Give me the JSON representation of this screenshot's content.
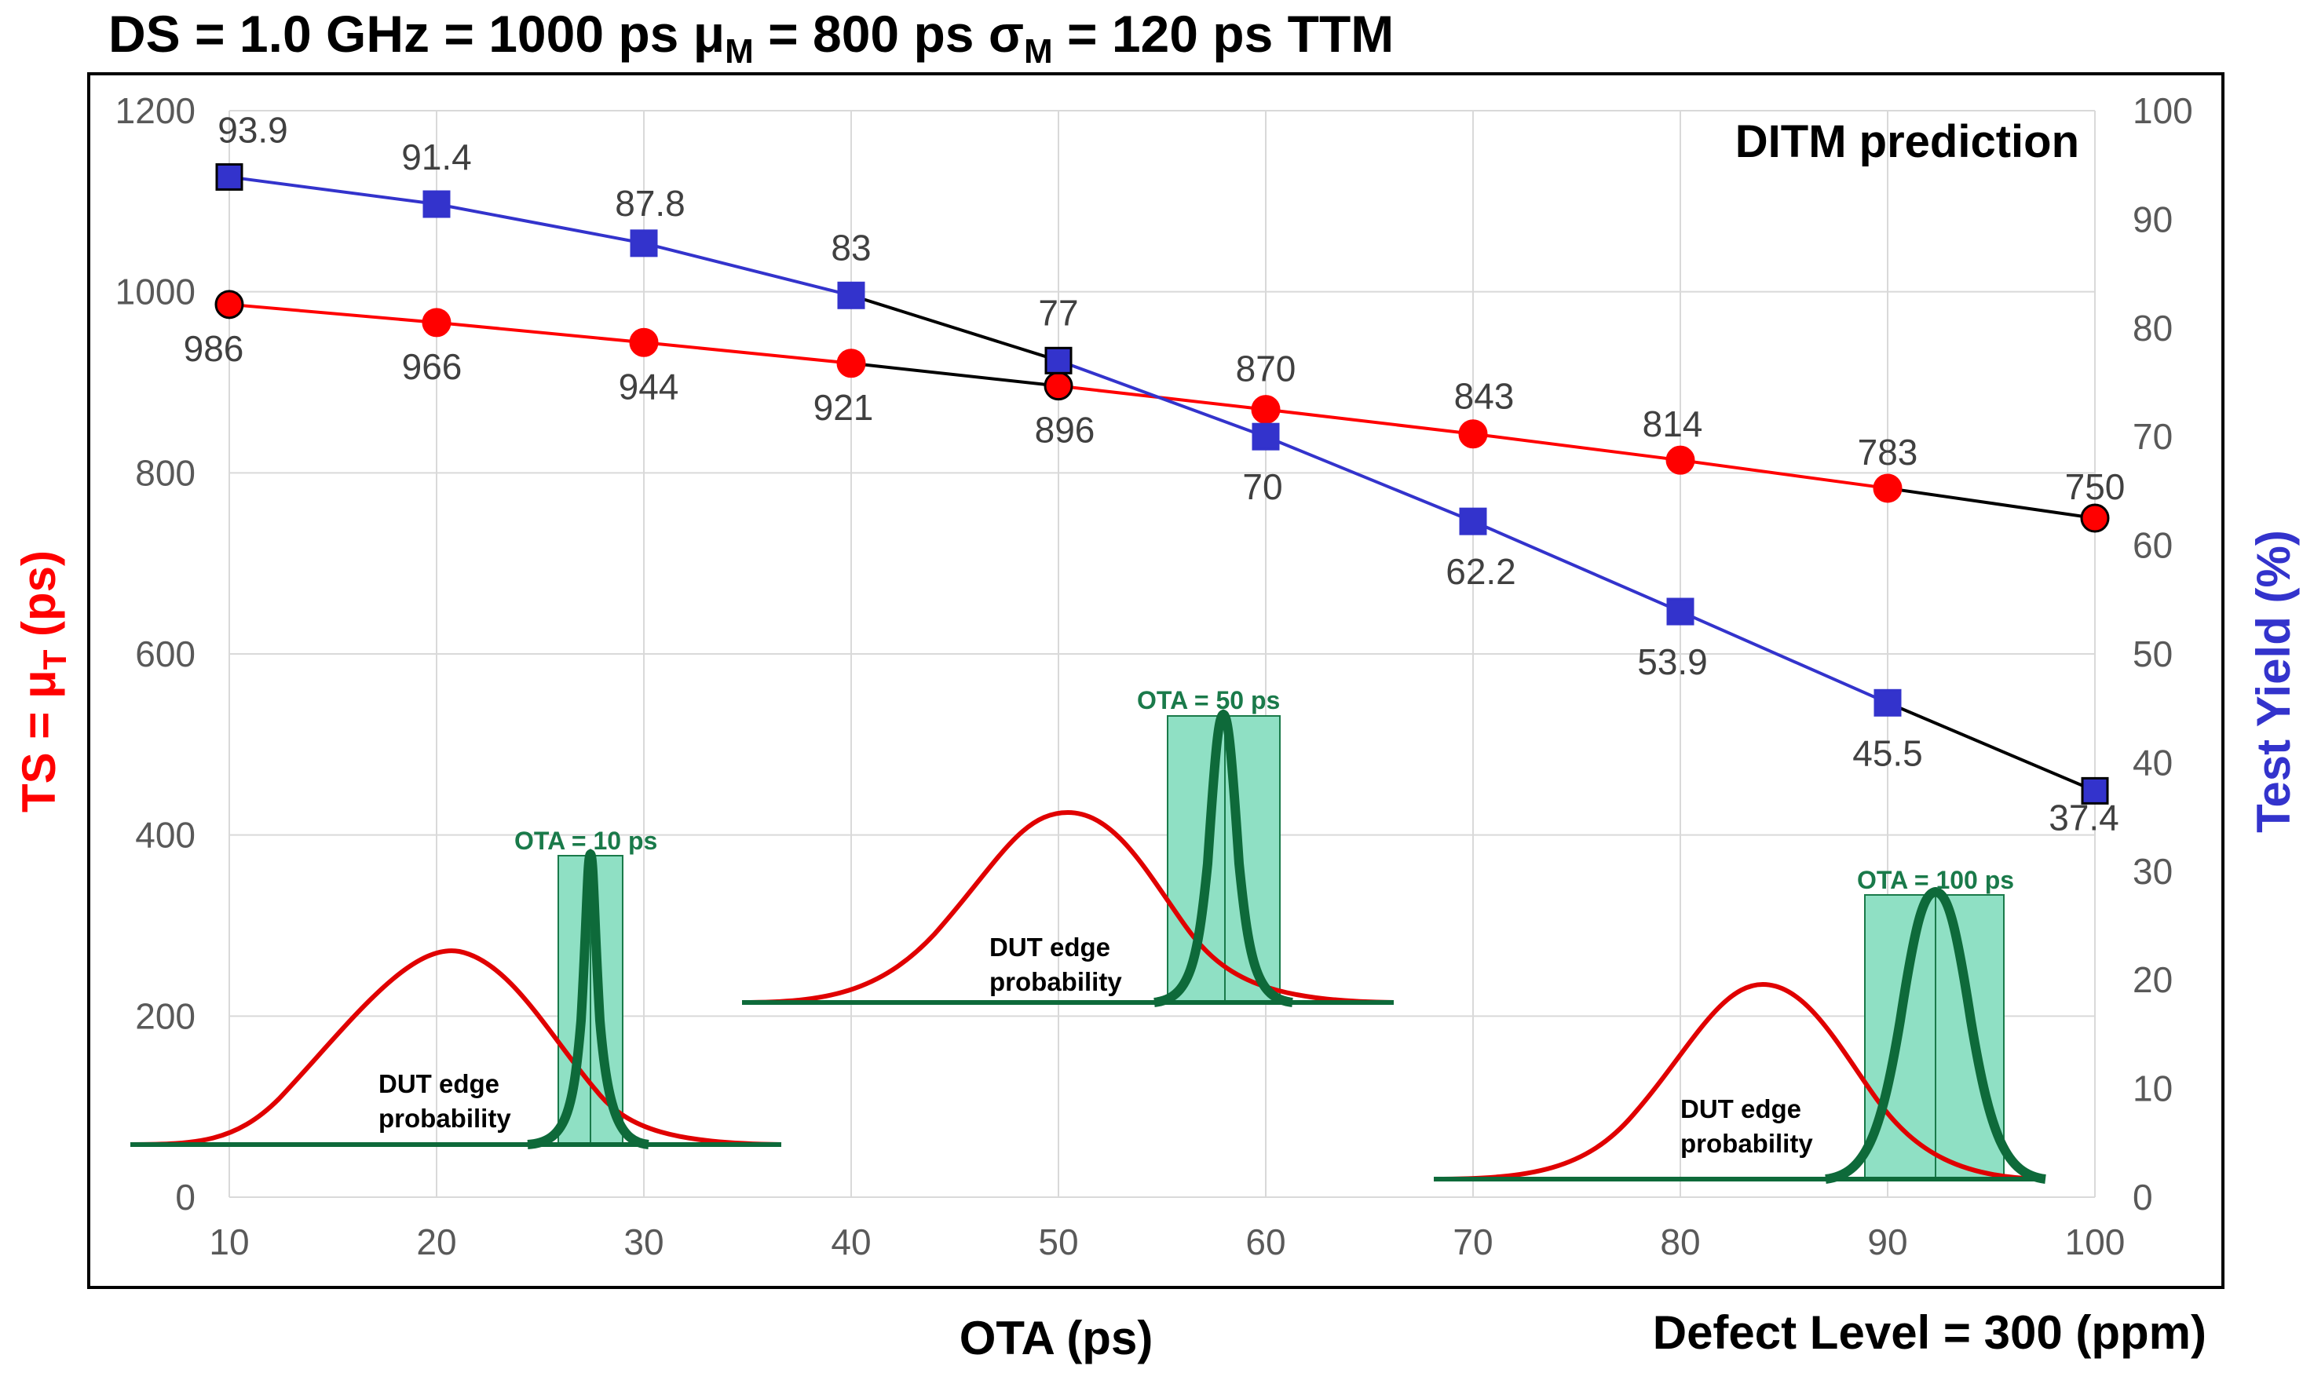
{
  "header": {
    "title_part1": "DS = 1.0 GHz = 1000 ps ",
    "mu_symbol": "μ",
    "mu_sub": "M",
    "title_part2": " = 800 ps ",
    "sigma_symbol": "σ",
    "sigma_sub": "M",
    "title_part3": " = 120 ps TTM"
  },
  "chart_data": {
    "type": "line",
    "title": "DS = 1.0 GHz = 1000 ps μM = 800 ps σM = 120 ps TTM",
    "annotation": "DITM prediction",
    "footer": "Defect Level = 300 (ppm)",
    "xlabel": "OTA (ps)",
    "ylabel_left_main": "TS = μ",
    "ylabel_left_sub": "T",
    "ylabel_left_unit": " (ps)",
    "ylabel_right": "Test Yield (%)",
    "x": [
      10,
      20,
      30,
      40,
      50,
      60,
      70,
      80,
      90,
      100
    ],
    "xlim": [
      10,
      100
    ],
    "ylim_left": [
      0,
      1200
    ],
    "ylim_right": [
      0,
      100
    ],
    "x_ticks": [
      "10",
      "20",
      "30",
      "40",
      "50",
      "60",
      "70",
      "80",
      "90",
      "100"
    ],
    "y_left_ticks": [
      "0",
      "200",
      "400",
      "600",
      "800",
      "1000",
      "1200"
    ],
    "y_right_ticks": [
      "0",
      "10",
      "20",
      "30",
      "40",
      "50",
      "60",
      "70",
      "80",
      "90",
      "100"
    ],
    "grid": true,
    "series": [
      {
        "name": "TS = μT (ps)",
        "axis": "left",
        "color": "#ff0000",
        "marker": "circle",
        "values": [
          986,
          966,
          944,
          921,
          896,
          870,
          843,
          814,
          783,
          750
        ],
        "labels": [
          "986",
          "966",
          "944",
          "921",
          "896",
          "870",
          "843",
          "814",
          "783",
          "750"
        ]
      },
      {
        "name": "Test Yield (%)",
        "axis": "right",
        "color": "#3333cc",
        "marker": "square",
        "values": [
          93.9,
          91.4,
          87.8,
          83,
          77,
          70,
          62.2,
          53.9,
          45.5,
          37.4
        ],
        "labels": [
          "93.9",
          "91.4",
          "87.8",
          "83",
          "77",
          "70",
          "62.2",
          "53.9",
          "45.5",
          "37.4"
        ]
      }
    ],
    "insets": [
      {
        "ota_label": "OTA = 10 ps",
        "dut_line1": "DUT edge",
        "dut_line2": "probability"
      },
      {
        "ota_label": "OTA = 50 ps",
        "dut_line1": "DUT edge",
        "dut_line2": "probability"
      },
      {
        "ota_label": "OTA = 100 ps",
        "dut_line1": "DUT edge",
        "dut_line2": "probability"
      }
    ]
  },
  "colors": {
    "ts_series": "#ff0000",
    "yield_series": "#3333cc",
    "highlight_segment": "#000000",
    "grid": "#d9d9d9",
    "inset_fill": "#8fe0c4",
    "inset_curve": "#0e6a3a",
    "dut_curve": "#e00000",
    "left_axis_title": "#ff0000",
    "right_axis_title": "#3333cc"
  }
}
